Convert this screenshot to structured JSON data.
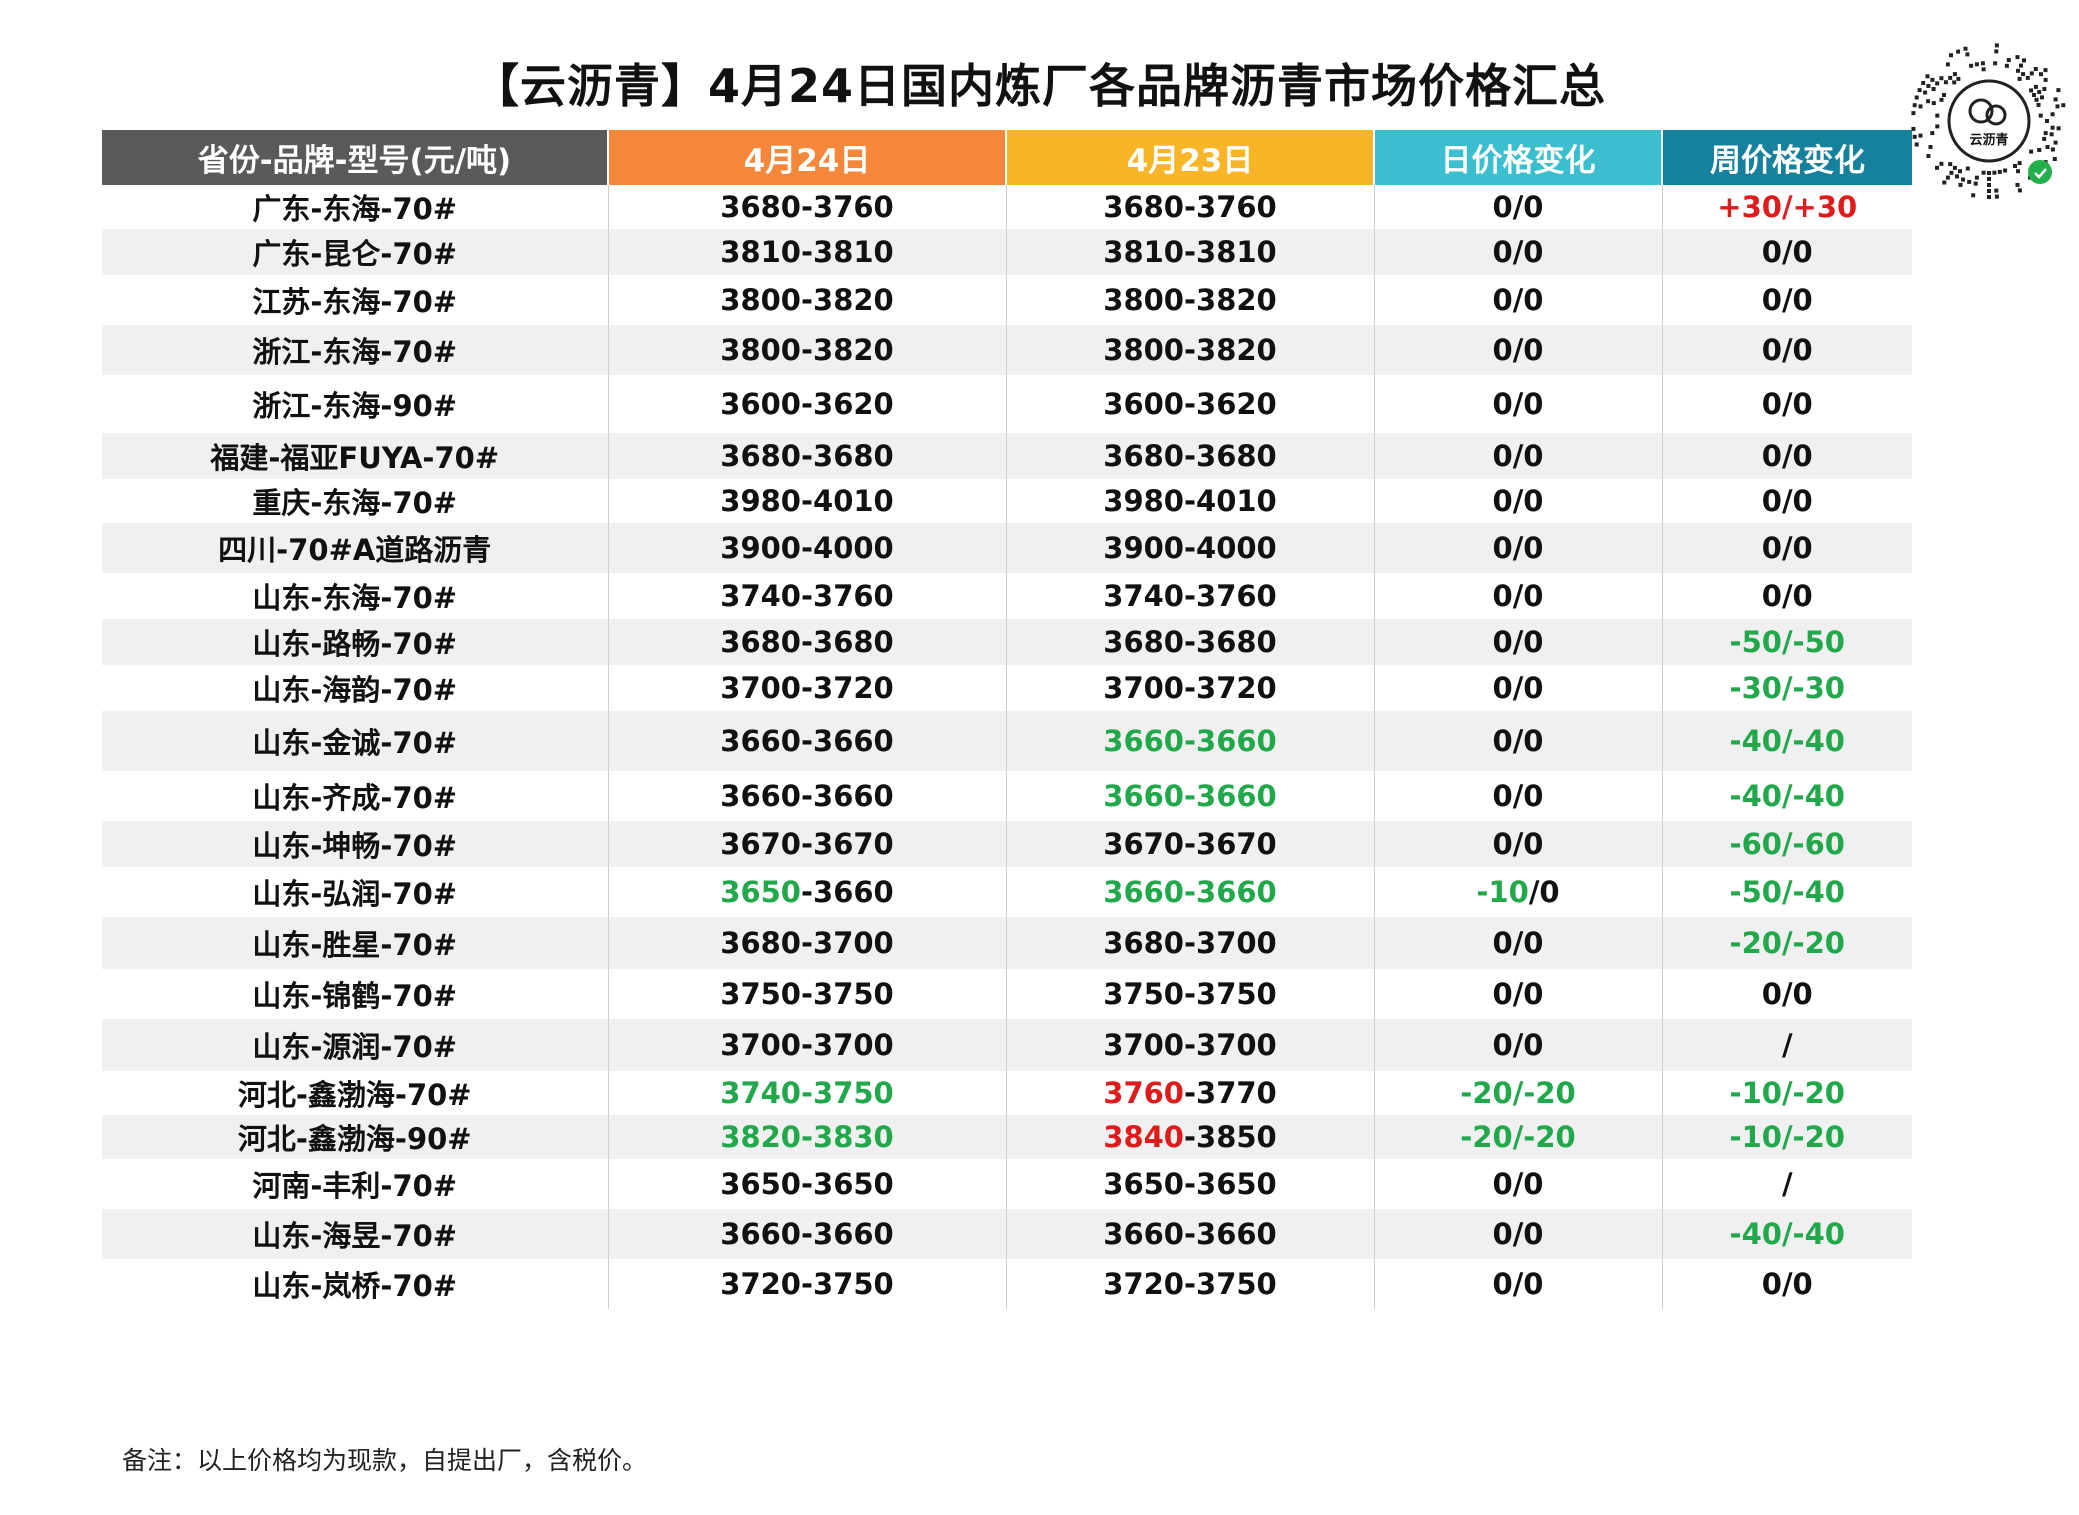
{
  "title": "【云沥青】4月24日国内炼厂各品牌沥青市场价格汇总",
  "brand": {
    "qr_icon": "qr-code-icon",
    "logo_text": "云沥青"
  },
  "colors": {
    "header_dark": "#5a5a5a",
    "header_orange": "#f5873a",
    "header_yellow": "#f8b527",
    "header_teal": "#3bbfcf",
    "header_blue": "#16819c",
    "green": "#21a84a",
    "red": "#e01b1b",
    "stripe": "#f0f0f0"
  },
  "table": {
    "headers": [
      "省份-品牌-型号(元/吨)",
      "4月24日",
      "4月23日",
      "日价格变化",
      "周价格变化"
    ],
    "rows": [
      {
        "name": "广东-东海-70#",
        "apr24": [
          [
            "3680-3760",
            "k"
          ]
        ],
        "apr23": [
          [
            "3680-3760",
            "k"
          ]
        ],
        "daily": [
          [
            "0/0",
            "k"
          ]
        ],
        "weekly": [
          [
            "+30/+30",
            "r"
          ]
        ]
      },
      {
        "name": "广东-昆仑-70#",
        "apr24": [
          [
            "3810-3810",
            "k"
          ]
        ],
        "apr23": [
          [
            "3810-3810",
            "k"
          ]
        ],
        "daily": [
          [
            "0/0",
            "k"
          ]
        ],
        "weekly": [
          [
            "0/0",
            "k"
          ]
        ]
      },
      {
        "name": "江苏-东海-70#",
        "apr24": [
          [
            "3800-3820",
            "k"
          ]
        ],
        "apr23": [
          [
            "3800-3820",
            "k"
          ]
        ],
        "daily": [
          [
            "0/0",
            "k"
          ]
        ],
        "weekly": [
          [
            "0/0",
            "k"
          ]
        ]
      },
      {
        "name": "浙江-东海-70#",
        "apr24": [
          [
            "3800-3820",
            "k"
          ]
        ],
        "apr23": [
          [
            "3800-3820",
            "k"
          ]
        ],
        "daily": [
          [
            "0/0",
            "k"
          ]
        ],
        "weekly": [
          [
            "0/0",
            "k"
          ]
        ]
      },
      {
        "name": "浙江-东海-90#",
        "apr24": [
          [
            "3600-3620",
            "k"
          ]
        ],
        "apr23": [
          [
            "3600-3620",
            "k"
          ]
        ],
        "daily": [
          [
            "0/0",
            "k"
          ]
        ],
        "weekly": [
          [
            "0/0",
            "k"
          ]
        ]
      },
      {
        "name": "福建-福亚FUYA-70#",
        "apr24": [
          [
            "3680-3680",
            "k"
          ]
        ],
        "apr23": [
          [
            "3680-3680",
            "k"
          ]
        ],
        "daily": [
          [
            "0/0",
            "k"
          ]
        ],
        "weekly": [
          [
            "0/0",
            "k"
          ]
        ]
      },
      {
        "name": "重庆-东海-70#",
        "apr24": [
          [
            "3980-4010",
            "k"
          ]
        ],
        "apr23": [
          [
            "3980-4010",
            "k"
          ]
        ],
        "daily": [
          [
            "0/0",
            "k"
          ]
        ],
        "weekly": [
          [
            "0/0",
            "k"
          ]
        ]
      },
      {
        "name": "四川-70#A道路沥青",
        "apr24": [
          [
            "3900-4000",
            "k"
          ]
        ],
        "apr23": [
          [
            "3900-4000",
            "k"
          ]
        ],
        "daily": [
          [
            "0/0",
            "k"
          ]
        ],
        "weekly": [
          [
            "0/0",
            "k"
          ]
        ]
      },
      {
        "name": "山东-东海-70#",
        "apr24": [
          [
            "3740-3760",
            "k"
          ]
        ],
        "apr23": [
          [
            "3740-3760",
            "k"
          ]
        ],
        "daily": [
          [
            "0/0",
            "k"
          ]
        ],
        "weekly": [
          [
            "0/0",
            "k"
          ]
        ]
      },
      {
        "name": "山东-路畅-70#",
        "apr24": [
          [
            "3680-3680",
            "k"
          ]
        ],
        "apr23": [
          [
            "3680-3680",
            "k"
          ]
        ],
        "daily": [
          [
            "0/0",
            "k"
          ]
        ],
        "weekly": [
          [
            "-50/-50",
            "g"
          ]
        ]
      },
      {
        "name": "山东-海韵-70#",
        "apr24": [
          [
            "3700-3720",
            "k"
          ]
        ],
        "apr23": [
          [
            "3700-3720",
            "k"
          ]
        ],
        "daily": [
          [
            "0/0",
            "k"
          ]
        ],
        "weekly": [
          [
            "-30/-30",
            "g"
          ]
        ]
      },
      {
        "name": "山东-金诚-70#",
        "apr24": [
          [
            "3660-3660",
            "k"
          ]
        ],
        "apr23": [
          [
            "3660-3660",
            "g"
          ]
        ],
        "daily": [
          [
            "0/0",
            "k"
          ]
        ],
        "weekly": [
          [
            "-40/-40",
            "g"
          ]
        ]
      },
      {
        "name": "山东-齐成-70#",
        "apr24": [
          [
            "3660-3660",
            "k"
          ]
        ],
        "apr23": [
          [
            "3660-3660",
            "g"
          ]
        ],
        "daily": [
          [
            "0/0",
            "k"
          ]
        ],
        "weekly": [
          [
            "-40/-40",
            "g"
          ]
        ]
      },
      {
        "name": "山东-坤畅-70#",
        "apr24": [
          [
            "3670-3670",
            "k"
          ]
        ],
        "apr23": [
          [
            "3670-3670",
            "k"
          ]
        ],
        "daily": [
          [
            "0/0",
            "k"
          ]
        ],
        "weekly": [
          [
            "-60/-60",
            "g"
          ]
        ]
      },
      {
        "name": "山东-弘润-70#",
        "apr24": [
          [
            "3650",
            "g"
          ],
          [
            "-3660",
            "k"
          ]
        ],
        "apr23": [
          [
            "3660-3660",
            "g"
          ]
        ],
        "daily": [
          [
            "-10",
            "g"
          ],
          [
            "/0",
            "k"
          ]
        ],
        "weekly": [
          [
            "-50/-40",
            "g"
          ]
        ]
      },
      {
        "name": "山东-胜星-70#",
        "apr24": [
          [
            "3680-3700",
            "k"
          ]
        ],
        "apr23": [
          [
            "3680-3700",
            "k"
          ]
        ],
        "daily": [
          [
            "0/0",
            "k"
          ]
        ],
        "weekly": [
          [
            "-20/-20",
            "g"
          ]
        ]
      },
      {
        "name": "山东-锦鹤-70#",
        "apr24": [
          [
            "3750-3750",
            "k"
          ]
        ],
        "apr23": [
          [
            "3750-3750",
            "k"
          ]
        ],
        "daily": [
          [
            "0/0",
            "k"
          ]
        ],
        "weekly": [
          [
            "0/0",
            "k"
          ]
        ]
      },
      {
        "name": "山东-源润-70#",
        "apr24": [
          [
            "3700-3700",
            "k"
          ]
        ],
        "apr23": [
          [
            "3700-3700",
            "k"
          ]
        ],
        "daily": [
          [
            "0/0",
            "k"
          ]
        ],
        "weekly": [
          [
            "/",
            "k"
          ]
        ]
      },
      {
        "name": "河北-鑫渤海-70#",
        "apr24": [
          [
            "3740-3750",
            "g"
          ]
        ],
        "apr23": [
          [
            "3760",
            "r"
          ],
          [
            "-3770",
            "k"
          ]
        ],
        "daily": [
          [
            "-20/-20",
            "g"
          ]
        ],
        "weekly": [
          [
            "-10/-20",
            "g"
          ]
        ]
      },
      {
        "name": "河北-鑫渤海-90#",
        "apr24": [
          [
            "3820-3830",
            "g"
          ]
        ],
        "apr23": [
          [
            "3840",
            "r"
          ],
          [
            "-3850",
            "k"
          ]
        ],
        "daily": [
          [
            "-20/-20",
            "g"
          ]
        ],
        "weekly": [
          [
            "-10/-20",
            "g"
          ]
        ]
      },
      {
        "name": "河南-丰利-70#",
        "apr24": [
          [
            "3650-3650",
            "k"
          ]
        ],
        "apr23": [
          [
            "3650-3650",
            "k"
          ]
        ],
        "daily": [
          [
            "0/0",
            "k"
          ]
        ],
        "weekly": [
          [
            "/",
            "k"
          ]
        ]
      },
      {
        "name": "山东-海昱-70#",
        "apr24": [
          [
            "3660-3660",
            "k"
          ]
        ],
        "apr23": [
          [
            "3660-3660",
            "k"
          ]
        ],
        "daily": [
          [
            "0/0",
            "k"
          ]
        ],
        "weekly": [
          [
            "-40/-40",
            "g"
          ]
        ]
      },
      {
        "name": "山东-岚桥-70#",
        "apr24": [
          [
            "3720-3750",
            "k"
          ]
        ],
        "apr23": [
          [
            "3720-3750",
            "k"
          ]
        ],
        "daily": [
          [
            "0/0",
            "k"
          ]
        ],
        "weekly": [
          [
            "0/0",
            "k"
          ]
        ]
      }
    ]
  },
  "note": "备注：以上价格均为现款，自提出厂，含税价。"
}
